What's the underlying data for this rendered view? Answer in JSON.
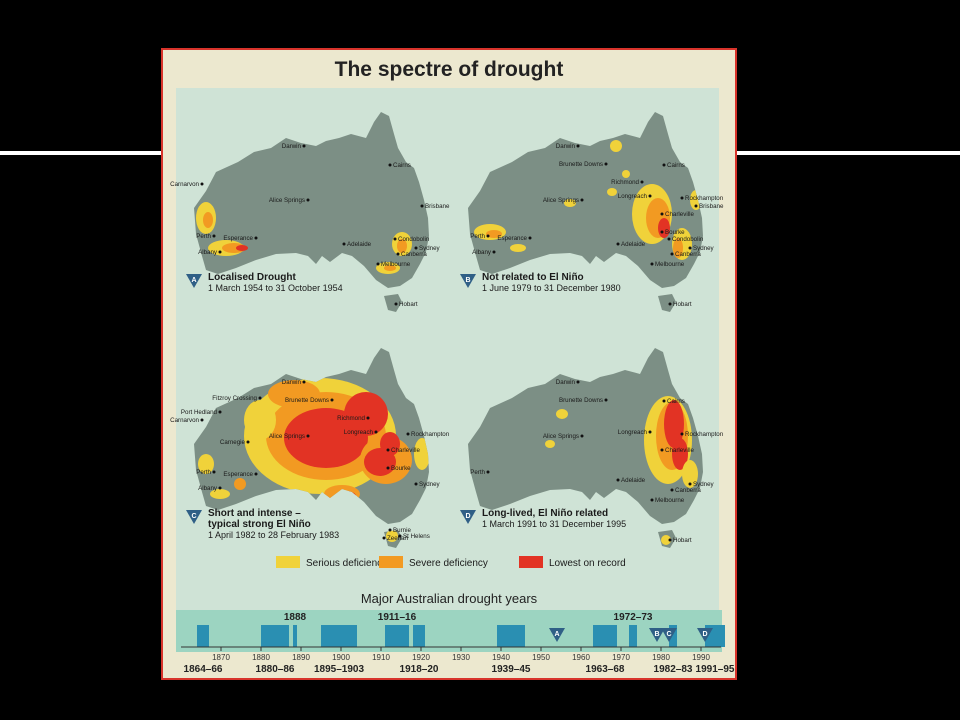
{
  "title": "The spectre of drought",
  "colors": {
    "serious": "#f0d23a",
    "severe": "#f29a22",
    "record": "#e23324",
    "land": "#7c8f85",
    "sea": "#cfe3d6",
    "timeline_bar": "#2a8fb2"
  },
  "maps": [
    {
      "letter": "A",
      "title": "Localised Drought",
      "period": "1 March 1954 to 31 October 1954",
      "cities": [
        "Darwin",
        "Cairns",
        "Alice Springs",
        "Carnarvon",
        "Brisbane",
        "Perth",
        "Adelaide",
        "Condobolin",
        "Albany",
        "Esperance",
        "Canberra",
        "Sydney",
        "Melbourne",
        "Hobart"
      ]
    },
    {
      "letter": "B",
      "title": "Not related to El Niño",
      "period": "1 June 1979 to 31 December 1980",
      "cities": [
        "Darwin",
        "Brunette Downs",
        "Cairns",
        "Richmond",
        "Longreach",
        "Rockhampton",
        "Alice Springs",
        "Charleville",
        "Brisbane",
        "Bourke",
        "Perth",
        "Esperance",
        "Adelaide",
        "Condobolin",
        "Albany",
        "Canberra",
        "Sydney",
        "Melbourne",
        "Hobart"
      ]
    },
    {
      "letter": "C",
      "title": "Short and intense –",
      "title2": "typical strong El Niño",
      "period": "1 April 1982 to 28 February 1983",
      "cities": [
        "Darwin",
        "Fitzroy Crossing",
        "Brunette Downs",
        "Richmond",
        "Port Hedland",
        "Alice Springs",
        "Longreach",
        "Rockhampton",
        "Carnarvon",
        "Carnegie",
        "Charleville",
        "Bourke",
        "Perth",
        "Esperance",
        "Albany",
        "Sydney",
        "Burnie",
        "Zeehan",
        "St Helens"
      ]
    },
    {
      "letter": "D",
      "title": "Long-lived, El Niño related",
      "period": "1 March 1991 to 31 December 1995",
      "cities": [
        "Darwin",
        "Cairns",
        "Brunette Downs",
        "Longreach",
        "Rockhampton",
        "Alice Springs",
        "Charleville",
        "Perth",
        "Adelaide",
        "Canberra",
        "Sydney",
        "Melbourne",
        "Hobart"
      ]
    }
  ],
  "legend": [
    {
      "label": "Serious deficiency",
      "color": "#f0d23a"
    },
    {
      "label": "Severe deficiency",
      "color": "#f29a22"
    },
    {
      "label": "Lowest on record",
      "color": "#e23324"
    }
  ],
  "timeline": {
    "title": "Major Australian drought years",
    "axis_start": 1860,
    "axis_end": 1995,
    "ticks": [
      1870,
      1880,
      1890,
      1900,
      1910,
      1920,
      1930,
      1940,
      1950,
      1960,
      1970,
      1980,
      1990
    ],
    "droughts": [
      {
        "start": 1864,
        "end": 1866,
        "label": "1864–66"
      },
      {
        "start": 1880,
        "end": 1886,
        "label": "1880–86"
      },
      {
        "start": 1888,
        "end": 1888,
        "label": "1888"
      },
      {
        "start": 1895,
        "end": 1903,
        "label": "1895–1903"
      },
      {
        "start": 1911,
        "end": 1916,
        "label": "1911–16"
      },
      {
        "start": 1918,
        "end": 1920,
        "label": "1918–20"
      },
      {
        "start": 1939,
        "end": 1945,
        "label": "1939–45"
      },
      {
        "start": 1963,
        "end": 1968,
        "label": "1963–68"
      },
      {
        "start": 1972,
        "end": 1973,
        "label": "1972–73"
      },
      {
        "start": 1982,
        "end": 1983,
        "label": "1982–83"
      },
      {
        "start": 1991,
        "end": 1995,
        "label": "1991–95"
      }
    ],
    "markers": [
      {
        "letter": "A",
        "year": 1954
      },
      {
        "letter": "B",
        "year": 1979
      },
      {
        "letter": "C",
        "year": 1982
      },
      {
        "letter": "D",
        "year": 1991
      }
    ]
  }
}
